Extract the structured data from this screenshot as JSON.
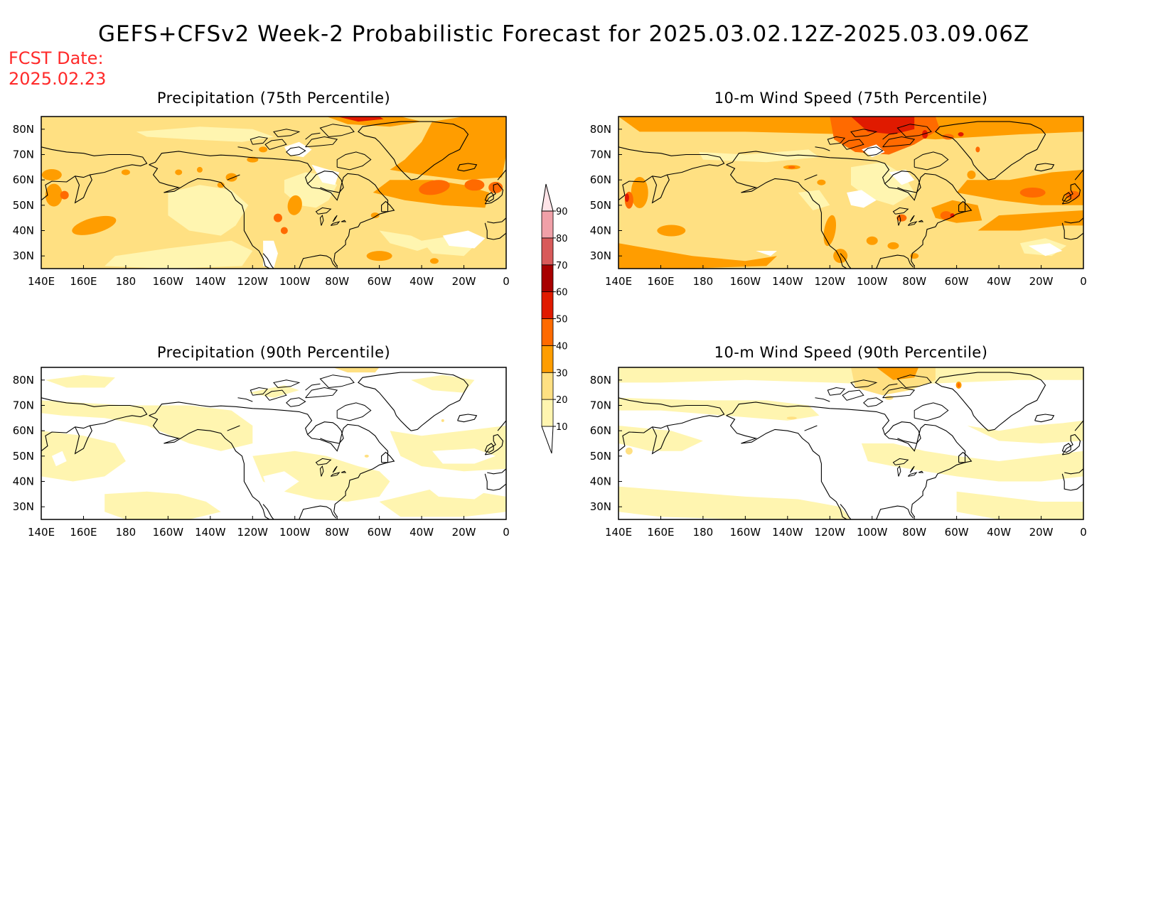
{
  "title": "GEFS+CFSv2 Week-2 Probabilistic Forecast for 2025.03.02.12Z-2025.03.09.06Z",
  "fcst_date_label": "FCST Date:",
  "fcst_date": "2025.02.23",
  "axes": {
    "lon_ticks": [
      "140E",
      "160E",
      "180",
      "160W",
      "140W",
      "120W",
      "100W",
      "80W",
      "60W",
      "40W",
      "20W",
      "0"
    ],
    "lat_ticks": [
      "80N",
      "70N",
      "60N",
      "50N",
      "40N",
      "30N"
    ],
    "lon_range_deg_east": [
      140,
      360
    ],
    "lat_range_deg_north": [
      25,
      85
    ]
  },
  "panels": [
    {
      "id": "precip-75",
      "title": "Precipitation (75th Percentile)",
      "dominant_probability_pct": "20-30"
    },
    {
      "id": "wind-75",
      "title": "10-m Wind Speed (75th Percentile)",
      "dominant_probability_pct": "20-40"
    },
    {
      "id": "precip-90",
      "title": "Precipitation (90th Percentile)",
      "dominant_probability_pct": "0-20"
    },
    {
      "id": "wind-90",
      "title": "10-m Wind Speed (90th Percentile)",
      "dominant_probability_pct": "0-20"
    }
  ],
  "colorbar": {
    "levels": [
      "10",
      "20",
      "30",
      "40",
      "50",
      "60",
      "70",
      "80",
      "90"
    ],
    "colors": [
      "#ffffff",
      "#fff5b0",
      "#ffe082",
      "#ff9d00",
      "#ff6a00",
      "#e01a00",
      "#a80000",
      "#d85a5a",
      "#f0a0a8",
      "#ffe4e8"
    ]
  },
  "map_colors": {
    "white": "#ffffff",
    "p10": "#fff5b0",
    "p20": "#ffe082",
    "p30": "#ff9d00",
    "p40": "#ff6a00",
    "p50": "#e01a00",
    "coast": "#000000"
  }
}
